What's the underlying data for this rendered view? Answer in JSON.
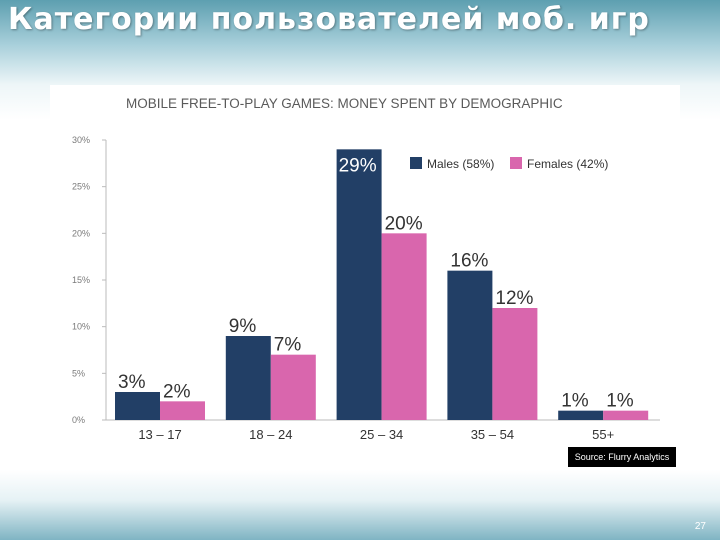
{
  "slide": {
    "title": "Категории пользователей моб. игр",
    "page_number": "27"
  },
  "source_label": "Source: Flurry Analytics",
  "chart_data": {
    "type": "bar",
    "title": "MOBILE FREE-TO-PLAY GAMES: MONEY SPENT BY DEMOGRAPHIC",
    "categories": [
      "13 – 17",
      "18 – 24",
      "25 – 34",
      "35 – 54",
      "55+"
    ],
    "series": [
      {
        "name": "Males (58%)",
        "values": [
          3,
          9,
          29,
          16,
          1
        ],
        "labels": [
          "3%",
          "9%",
          "29%",
          "16%",
          "1%"
        ],
        "color": "#223f66"
      },
      {
        "name": "Females (42%)",
        "values": [
          2,
          7,
          20,
          12,
          1
        ],
        "labels": [
          "2%",
          "7%",
          "20%",
          "12%",
          "1%"
        ],
        "color": "#d966ad"
      }
    ],
    "ylim": [
      0,
      30
    ],
    "yticks": [
      0,
      5,
      10,
      15,
      20,
      25,
      30
    ],
    "ytick_labels": [
      "0%",
      "5%",
      "10%",
      "15%",
      "20%",
      "25%",
      "30%"
    ],
    "legend_position": "top-right",
    "grid": false
  }
}
